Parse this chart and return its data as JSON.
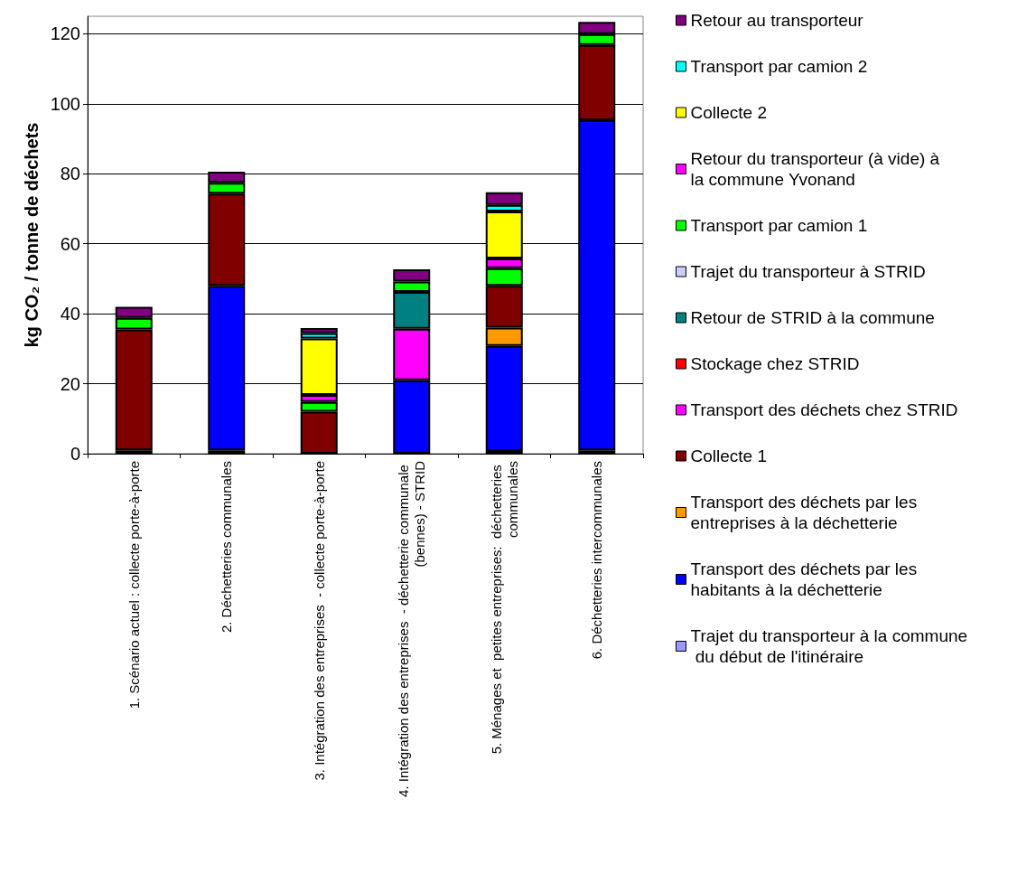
{
  "chart_data": {
    "type": "bar",
    "stacked": true,
    "ylabel": "kg CO₂ / tonne de déchets",
    "categories": [
      "1. Scénario actuel : collecte porte-à-porte",
      "2. Déchetteries communales",
      "3. Intégration des entreprises  - collecte porte-à-porte",
      "4. Intégration des entreprises  - déchetterie communale (bennes) - STRID",
      "5. Ménages et  petites entreprises:  déchetteries communales",
      "6. Déchetteries intercommunales"
    ],
    "ylim": [
      0,
      125
    ],
    "yticks": [
      0,
      20,
      40,
      60,
      80,
      100,
      120
    ],
    "grid": "y",
    "legend": "right",
    "series": [
      {
        "name": "Trajet du transporteur à la commune du début de l'itinéraire",
        "color": "#9999ff",
        "values": [
          1,
          1,
          null,
          null,
          0.8,
          1
        ]
      },
      {
        "name": "Transport des déchets par les habitants à la déchetterie",
        "color": "#0000ff",
        "values": [
          null,
          47,
          null,
          21,
          30,
          94.3
        ]
      },
      {
        "name": "Transport des déchets par les entreprises à la déchetterie",
        "color": "#ff9900",
        "values": [
          null,
          null,
          null,
          null,
          5.2,
          null
        ]
      },
      {
        "name": "Collecte 1",
        "color": "#800000",
        "values": [
          34.5,
          26.3,
          12,
          null,
          12,
          21.5
        ]
      },
      {
        "name": "Transport des déchets chez STRID",
        "color": "#ff00ff",
        "values": [
          null,
          null,
          null,
          14.7,
          null,
          null
        ]
      },
      {
        "name": "Stockage chez STRID",
        "color": "#ff0000",
        "values": [
          null,
          null,
          null,
          null,
          null,
          null
        ]
      },
      {
        "name": "Retour de STRID à la commune",
        "color": "#008080",
        "values": [
          null,
          null,
          null,
          10.5,
          null,
          null
        ]
      },
      {
        "name": "Trajet du transporteur à STRID",
        "color": "#ccccff",
        "values": [
          null,
          null,
          null,
          null,
          null,
          null
        ]
      },
      {
        "name": "Transport par camion 1",
        "color": "#00ff00",
        "values": [
          3.3,
          3.1,
          2.8,
          3,
          5,
          3.1
        ]
      },
      {
        "name": "Retour du transporteur (à vide) à la commune Yvonand",
        "color": "#ff00ff",
        "values": [
          null,
          null,
          2,
          null,
          2.8,
          null
        ]
      },
      {
        "name": "Collecte 2",
        "color": "#ffff00",
        "values": [
          null,
          null,
          16.1,
          null,
          13.4,
          null
        ]
      },
      {
        "name": "Transport par camion 2",
        "color": "#00ffff",
        "values": [
          null,
          null,
          1.6,
          null,
          1.9,
          null
        ]
      },
      {
        "name": "Retour au transporteur",
        "color": "#800080",
        "values": [
          3.2,
          3.2,
          1.4,
          3.5,
          3.6,
          3.5
        ]
      }
    ]
  }
}
